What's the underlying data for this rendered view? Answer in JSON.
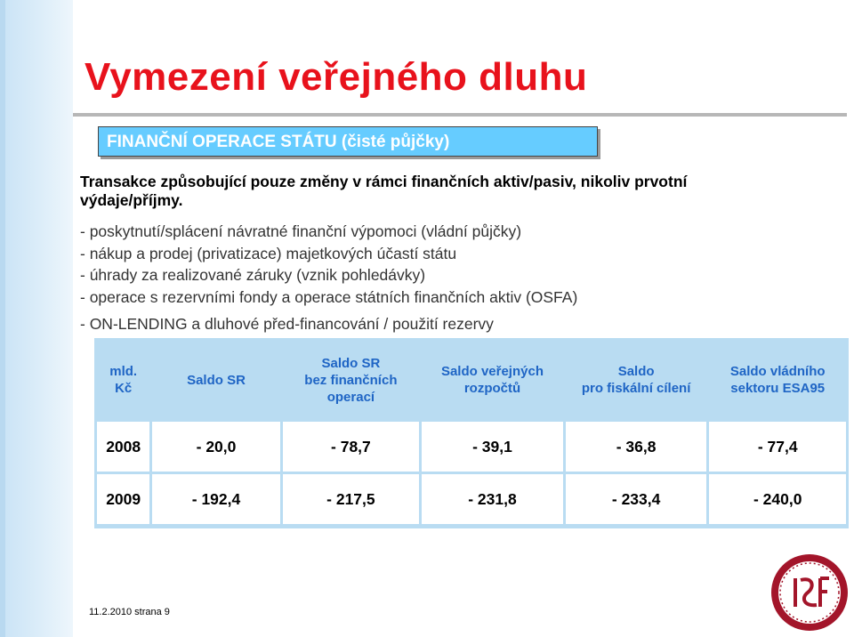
{
  "title": "Vymezení veřejného dluhu",
  "banner": "FINANČNÍ OPERACE STÁTU (čisté půjčky)",
  "intro": "Transakce způsobující pouze změny v rámci finančních aktiv/pasiv, nikoliv prvotní výdaje/příjmy.",
  "bullets": [
    "- poskytnutí/splácení návratné finanční výpomoci (vládní půjčky)",
    "- nákup a prodej (privatizace) majetkových účastí státu",
    "- úhrady za realizované záruky (vznik pohledávky)",
    "- operace s rezervními fondy a operace státních finančních aktiv (OSFA)",
    "- ON-LENDING a dluhové před-financování / použití rezervy"
  ],
  "table": {
    "headers": [
      [
        "mld.",
        "Kč"
      ],
      [
        "Saldo SR"
      ],
      [
        "Saldo SR",
        "bez finančních",
        "operací"
      ],
      [
        "Saldo veřejných",
        "rozpočtů"
      ],
      [
        "Saldo",
        "pro fiskální cílení"
      ],
      [
        "Saldo vládního",
        "sektoru ESA95"
      ]
    ],
    "rows": [
      [
        "2008",
        "- 20,0",
        "- 78,7",
        "- 39,1",
        "- 36,8",
        "- 77,4"
      ],
      [
        "2009",
        "- 192,4",
        "- 217,5",
        "- 231,8",
        "- 233,4",
        "- 240,0"
      ]
    ]
  },
  "footer": "11.2.2010 strana 9",
  "logo": {
    "icon": "ifs-logo-icon",
    "ring_color": "#a3152a",
    "text": "IES"
  },
  "colors": {
    "title": "#e8121c",
    "banner_bg": "#66ccff",
    "header_text": "#1f65c5",
    "table_bg": "#b9dcf2"
  }
}
